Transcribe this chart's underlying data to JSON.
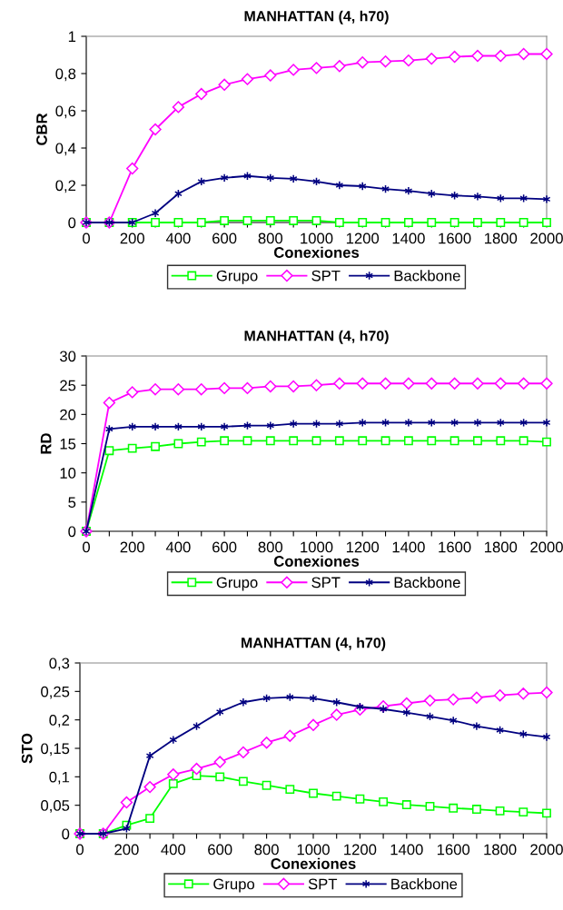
{
  "chart_data": [
    {
      "type": "line",
      "title": "MANHATTAN (4, h70)",
      "xlabel": "Conexiones",
      "ylabel": "CBR",
      "x": [
        0,
        100,
        200,
        300,
        400,
        500,
        600,
        700,
        800,
        900,
        1000,
        1100,
        1200,
        1300,
        1400,
        1500,
        1600,
        1700,
        1800,
        1900,
        2000
      ],
      "xlim": [
        0,
        2000
      ],
      "xticks": [
        0,
        {
          "value": 100,
          "label": null
        },
        200,
        {
          "value": 300,
          "label": null
        },
        400,
        {
          "value": 500,
          "label": null
        },
        600,
        {
          "value": 700,
          "label": null
        },
        800,
        {
          "value": 900,
          "label": null
        },
        1000,
        {
          "value": 1100,
          "label": null
        },
        1200,
        {
          "value": 1300,
          "label": null
        },
        1400,
        {
          "value": 1500,
          "label": null
        },
        1600,
        {
          "value": 1700,
          "label": null
        },
        1800,
        {
          "value": 1900,
          "label": null
        },
        2000
      ],
      "ylim": [
        0,
        1
      ],
      "yticks": [
        0,
        {
          "value": 0.2,
          "label": "0,2"
        },
        {
          "value": 0.4,
          "label": "0,4"
        },
        {
          "value": 0.6,
          "label": "0,6"
        },
        {
          "value": 0.8,
          "label": "0,8"
        },
        1
      ],
      "grid": false,
      "legend": "bottom",
      "series": [
        {
          "name": "Grupo",
          "color": "#00ff00",
          "marker": "square",
          "values": [
            0,
            0,
            0,
            0,
            0,
            0,
            0.01,
            0.01,
            0.01,
            0.01,
            0.01,
            0,
            0,
            0,
            0,
            0,
            0,
            0,
            0,
            0,
            0
          ]
        },
        {
          "name": "SPT",
          "color": "#ff00ff",
          "marker": "diamond",
          "values": [
            0,
            0,
            0.29,
            0.5,
            0.62,
            0.69,
            0.74,
            0.77,
            0.79,
            0.82,
            0.83,
            0.84,
            0.86,
            0.865,
            0.87,
            0.88,
            0.89,
            0.895,
            0.895,
            0.905,
            0.905
          ]
        },
        {
          "name": "Backbone",
          "color": "#000080",
          "marker": "cross",
          "values": [
            0,
            0,
            0,
            0.05,
            0.155,
            0.22,
            0.24,
            0.25,
            0.24,
            0.235,
            0.22,
            0.2,
            0.195,
            0.18,
            0.17,
            0.155,
            0.145,
            0.14,
            0.13,
            0.13,
            0.125
          ]
        }
      ]
    },
    {
      "type": "line",
      "title": "MANHATTAN (4, h70)",
      "xlabel": "Conexiones",
      "ylabel": "RD",
      "x": [
        0,
        100,
        200,
        300,
        400,
        500,
        600,
        700,
        800,
        900,
        1000,
        1100,
        1200,
        1300,
        1400,
        1500,
        1600,
        1700,
        1800,
        1900,
        2000
      ],
      "xlim": [
        0,
        2000
      ],
      "xticks": [
        0,
        {
          "value": 100,
          "label": null
        },
        200,
        {
          "value": 300,
          "label": null
        },
        400,
        {
          "value": 500,
          "label": null
        },
        600,
        {
          "value": 700,
          "label": null
        },
        800,
        {
          "value": 900,
          "label": null
        },
        1000,
        {
          "value": 1100,
          "label": null
        },
        1200,
        {
          "value": 1300,
          "label": null
        },
        1400,
        {
          "value": 1500,
          "label": null
        },
        1600,
        {
          "value": 1700,
          "label": null
        },
        1800,
        {
          "value": 1900,
          "label": null
        },
        2000
      ],
      "ylim": [
        0,
        30
      ],
      "yticks": [
        0,
        5,
        10,
        15,
        20,
        25,
        30
      ],
      "grid": false,
      "legend": "bottom",
      "series": [
        {
          "name": "Grupo",
          "color": "#00ff00",
          "marker": "square",
          "values": [
            0,
            13.8,
            14.2,
            14.5,
            15,
            15.3,
            15.5,
            15.5,
            15.5,
            15.5,
            15.5,
            15.5,
            15.5,
            15.5,
            15.5,
            15.5,
            15.5,
            15.5,
            15.5,
            15.5,
            15.3
          ]
        },
        {
          "name": "SPT",
          "color": "#ff00ff",
          "marker": "diamond",
          "values": [
            0,
            22,
            23.8,
            24.3,
            24.3,
            24.3,
            24.5,
            24.5,
            24.8,
            24.8,
            25,
            25.3,
            25.3,
            25.3,
            25.3,
            25.3,
            25.3,
            25.3,
            25.3,
            25.3,
            25.3
          ]
        },
        {
          "name": "Backbone",
          "color": "#000080",
          "marker": "cross",
          "values": [
            0,
            17.5,
            17.9,
            17.9,
            17.9,
            17.9,
            17.9,
            18.1,
            18.1,
            18.4,
            18.4,
            18.4,
            18.6,
            18.6,
            18.6,
            18.6,
            18.6,
            18.6,
            18.6,
            18.6,
            18.6
          ]
        }
      ]
    },
    {
      "type": "line",
      "title": "MANHATTAN (4, h70)",
      "xlabel": "Conexiones",
      "ylabel": "STO",
      "x": [
        0,
        100,
        200,
        300,
        400,
        500,
        600,
        700,
        800,
        900,
        1000,
        1100,
        1200,
        1300,
        1400,
        1500,
        1600,
        1700,
        1800,
        1900,
        2000
      ],
      "xlim": [
        0,
        2000
      ],
      "xticks": [
        0,
        {
          "value": 100,
          "label": null
        },
        200,
        {
          "value": 300,
          "label": null
        },
        400,
        {
          "value": 500,
          "label": null
        },
        600,
        {
          "value": 700,
          "label": null
        },
        800,
        {
          "value": 900,
          "label": null
        },
        1000,
        {
          "value": 1100,
          "label": null
        },
        1200,
        {
          "value": 1300,
          "label": null
        },
        1400,
        {
          "value": 1500,
          "label": null
        },
        1600,
        {
          "value": 1700,
          "label": null
        },
        1800,
        {
          "value": 1900,
          "label": null
        },
        2000
      ],
      "ylim": [
        0,
        0.3
      ],
      "yticks": [
        0,
        {
          "value": 0.05,
          "label": "0,05"
        },
        {
          "value": 0.1,
          "label": "0,1"
        },
        {
          "value": 0.15,
          "label": "0,15"
        },
        {
          "value": 0.2,
          "label": "0,2"
        },
        {
          "value": 0.25,
          "label": "0,25"
        },
        {
          "value": 0.3,
          "label": "0,3"
        }
      ],
      "grid": false,
      "legend": "bottom",
      "series": [
        {
          "name": "Grupo",
          "color": "#00ff00",
          "marker": "square",
          "values": [
            0,
            0,
            0.015,
            0.027,
            0.088,
            0.102,
            0.1,
            0.092,
            0.085,
            0.078,
            0.071,
            0.066,
            0.061,
            0.056,
            0.051,
            0.048,
            0.045,
            0.043,
            0.04,
            0.038,
            0.036
          ]
        },
        {
          "name": "SPT",
          "color": "#ff00ff",
          "marker": "diamond",
          "values": [
            0,
            0,
            0.055,
            0.082,
            0.104,
            0.114,
            0.126,
            0.143,
            0.16,
            0.172,
            0.191,
            0.209,
            0.218,
            0.224,
            0.229,
            0.234,
            0.236,
            0.239,
            0.243,
            0.246,
            0.248
          ]
        },
        {
          "name": "Backbone",
          "color": "#000080",
          "marker": "cross",
          "values": [
            0,
            0,
            0.009,
            0.137,
            0.165,
            0.189,
            0.214,
            0.231,
            0.238,
            0.24,
            0.238,
            0.231,
            0.223,
            0.219,
            0.213,
            0.206,
            0.199,
            0.189,
            0.182,
            0.175,
            0.17
          ]
        }
      ]
    }
  ]
}
